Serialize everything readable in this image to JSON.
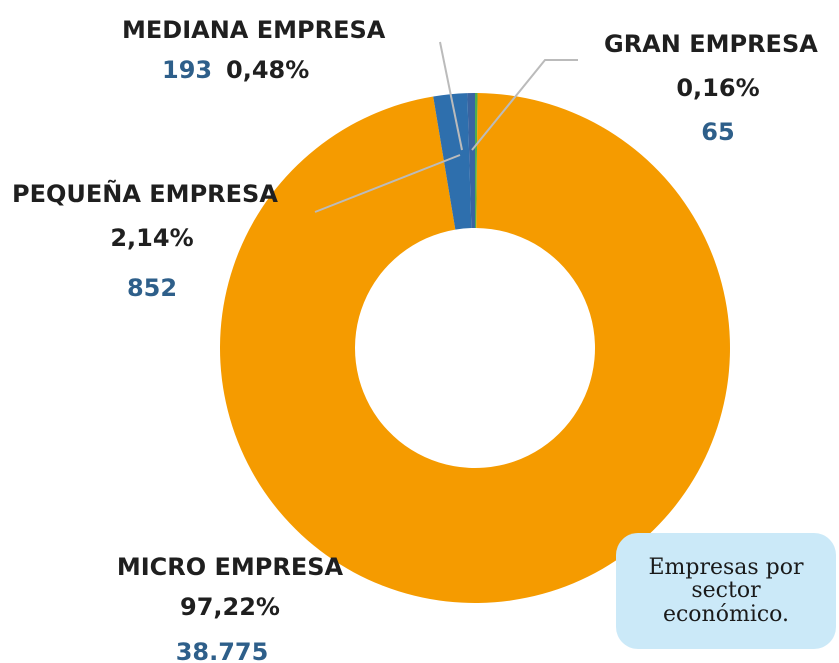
{
  "chart_data": {
    "type": "donut",
    "categories": [
      "GRAN EMPRESA",
      "MICRO EMPRESA",
      "PEQUEÑA EMPRESA",
      "MEDIANA EMPRESA"
    ],
    "values": [
      0.16,
      97.22,
      2.14,
      0.48
    ],
    "value_labels": [
      "0,16%",
      "97,22%",
      "2,14%",
      "0,48%"
    ],
    "counts": [
      65,
      38775,
      852,
      193
    ],
    "count_labels": [
      "65",
      "38.775",
      "852",
      "193"
    ],
    "colors": [
      "#4caf50",
      "#f59b00",
      "#2e6fad",
      "#3a64a0"
    ],
    "annotation": "Empresas por sector económico."
  }
}
